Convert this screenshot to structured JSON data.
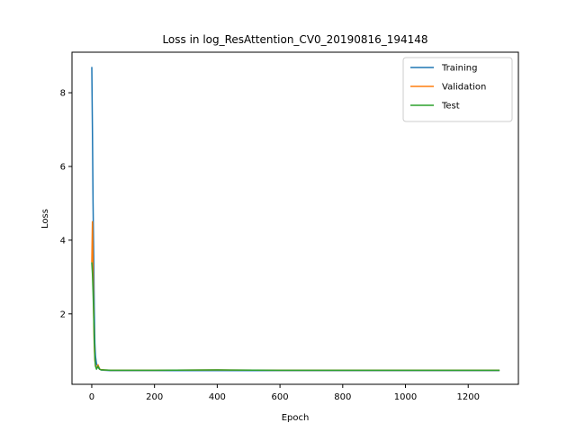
{
  "chart_data": {
    "type": "line",
    "title": "Loss in log_ResAttention_CV0_20190816_194148",
    "xlabel": "Epoch",
    "ylabel": "Loss",
    "xlim": [
      -63,
      1360
    ],
    "ylim": [
      0.09,
      9.1
    ],
    "xticks": [
      0,
      200,
      400,
      600,
      800,
      1000,
      1200
    ],
    "yticks": [
      2,
      4,
      6,
      8
    ],
    "grid": false,
    "legend": "top-right",
    "series": [
      {
        "name": "Training",
        "color": "#1f77b4",
        "x": [
          0,
          2,
          4,
          6,
          8,
          10,
          12,
          15,
          20,
          25,
          30,
          40,
          60,
          100,
          200,
          400,
          600,
          800,
          1000,
          1200,
          1300
        ],
        "y": [
          8.7,
          7.0,
          5.0,
          3.6,
          2.2,
          1.2,
          0.85,
          0.65,
          0.55,
          0.5,
          0.48,
          0.47,
          0.46,
          0.46,
          0.46,
          0.46,
          0.46,
          0.46,
          0.46,
          0.46,
          0.46
        ]
      },
      {
        "name": "Validation",
        "color": "#ff7f0e",
        "x": [
          0,
          2,
          4,
          6,
          8,
          10,
          12,
          15,
          20,
          25,
          30,
          40,
          60,
          100,
          200,
          400,
          600,
          800,
          1000,
          1200,
          1300
        ],
        "y": [
          3.4,
          4.5,
          3.2,
          2.0,
          1.2,
          0.75,
          0.6,
          0.52,
          0.62,
          0.5,
          0.49,
          0.48,
          0.47,
          0.47,
          0.47,
          0.48,
          0.47,
          0.47,
          0.47,
          0.47,
          0.47
        ]
      },
      {
        "name": "Test",
        "color": "#2ca02c",
        "x": [
          0,
          2,
          4,
          6,
          8,
          10,
          12,
          15,
          20,
          25,
          30,
          40,
          60,
          100,
          200,
          400,
          600,
          800,
          1000,
          1200,
          1300
        ],
        "y": [
          3.4,
          3.1,
          2.6,
          2.0,
          1.3,
          0.8,
          0.58,
          0.5,
          0.58,
          0.5,
          0.48,
          0.48,
          0.47,
          0.47,
          0.47,
          0.48,
          0.47,
          0.47,
          0.47,
          0.47,
          0.47
        ]
      }
    ]
  }
}
